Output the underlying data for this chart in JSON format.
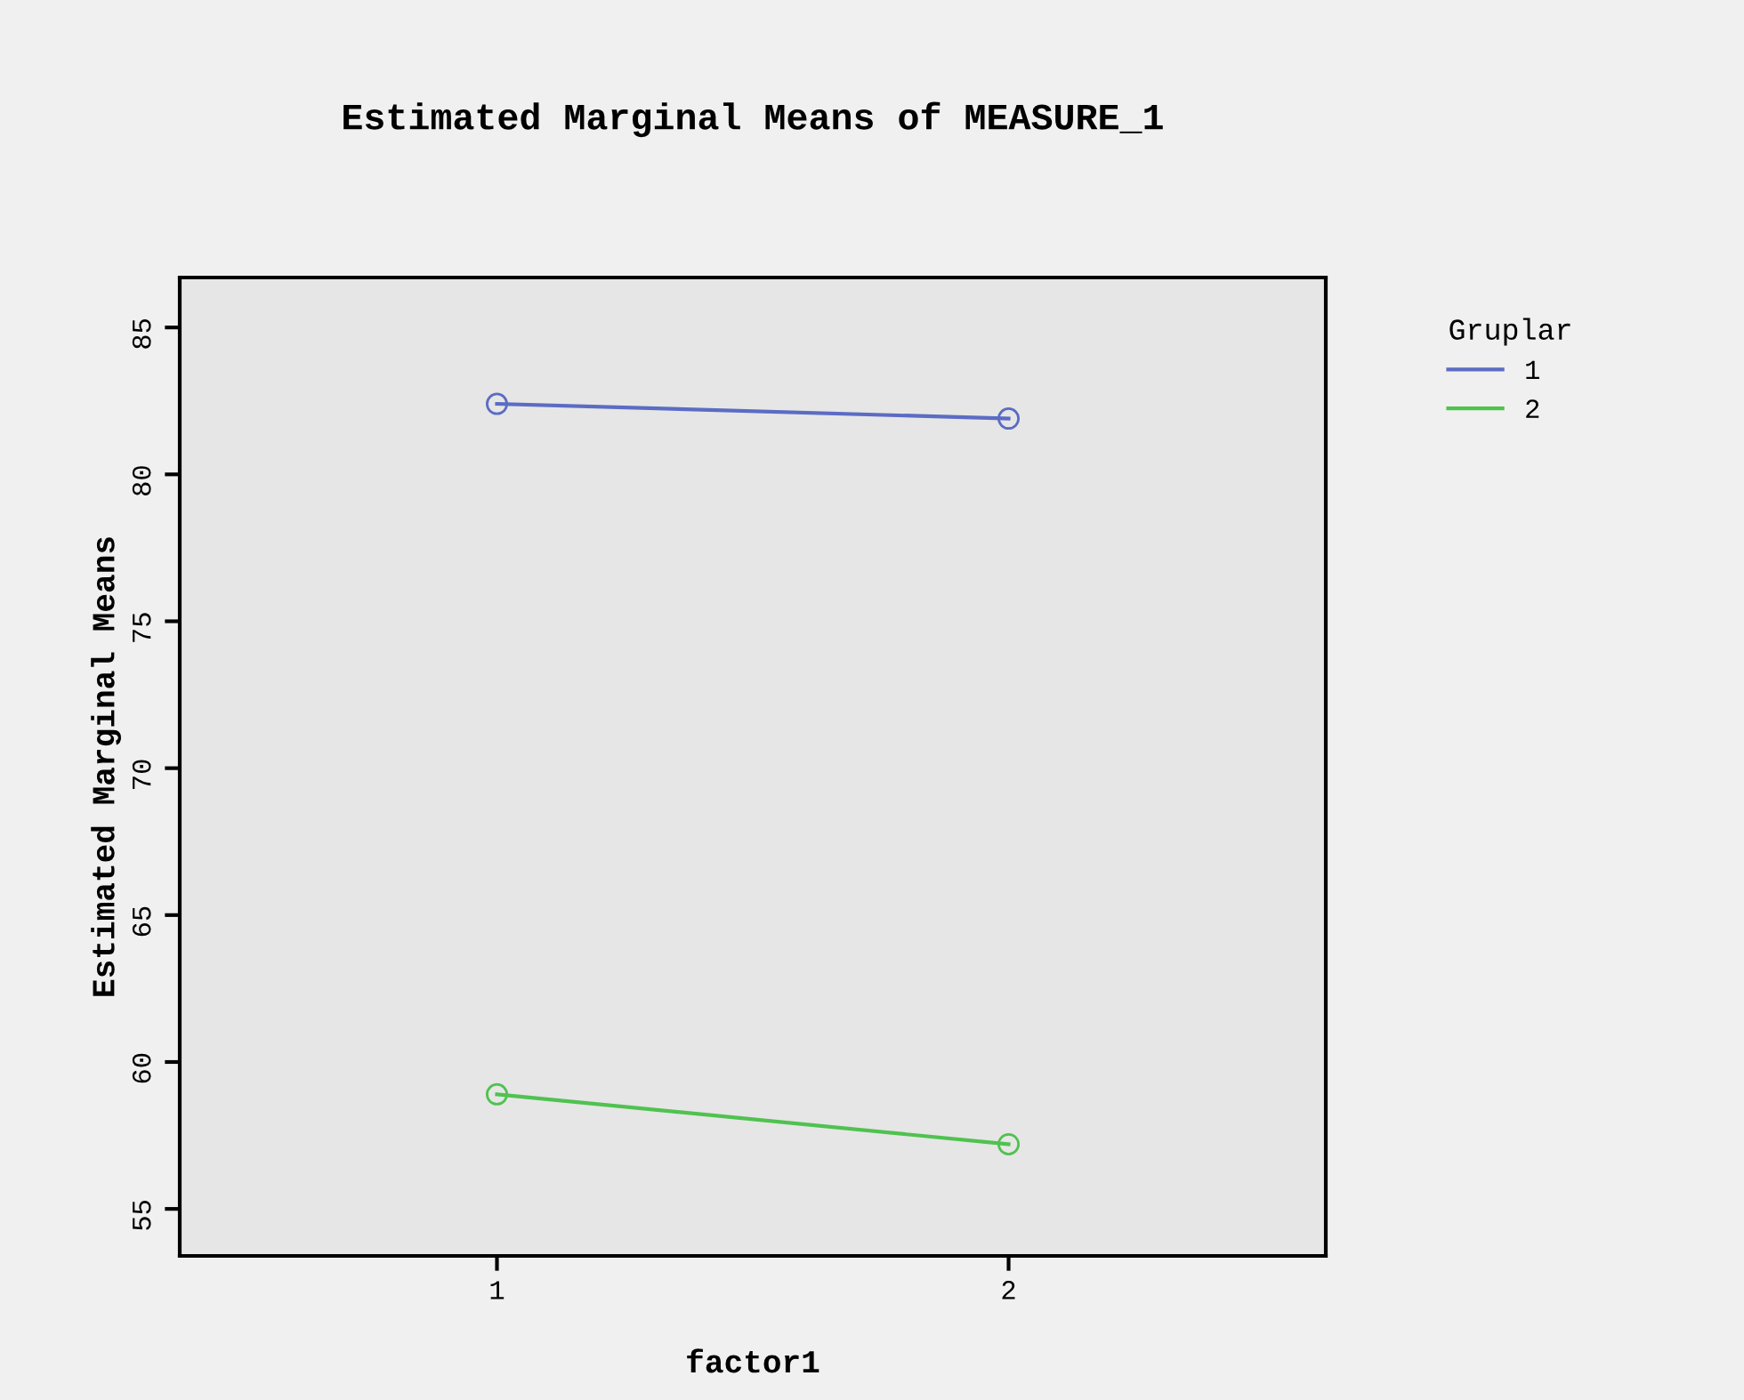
{
  "chart_data": {
    "type": "line",
    "title": "Estimated Marginal Means of MEASURE_1",
    "xlabel": "factor1",
    "ylabel": "Estimated Marginal Means",
    "legend_title": "Gruplar",
    "x": [
      1,
      2
    ],
    "xlim": [
      0.38,
      2.62
    ],
    "xticks": [
      1,
      2
    ],
    "ylim": [
      53.4,
      86.7
    ],
    "yticks": [
      55,
      60,
      65,
      70,
      75,
      80,
      85
    ],
    "series": [
      {
        "name": "1",
        "color": "#5b6cc4",
        "values": [
          82.4,
          81.9
        ]
      },
      {
        "name": "2",
        "color": "#4fc24f",
        "values": [
          58.9,
          57.2
        ]
      }
    ],
    "marker": "circle",
    "line_style": "solid",
    "grid": false,
    "legend": "top right"
  }
}
